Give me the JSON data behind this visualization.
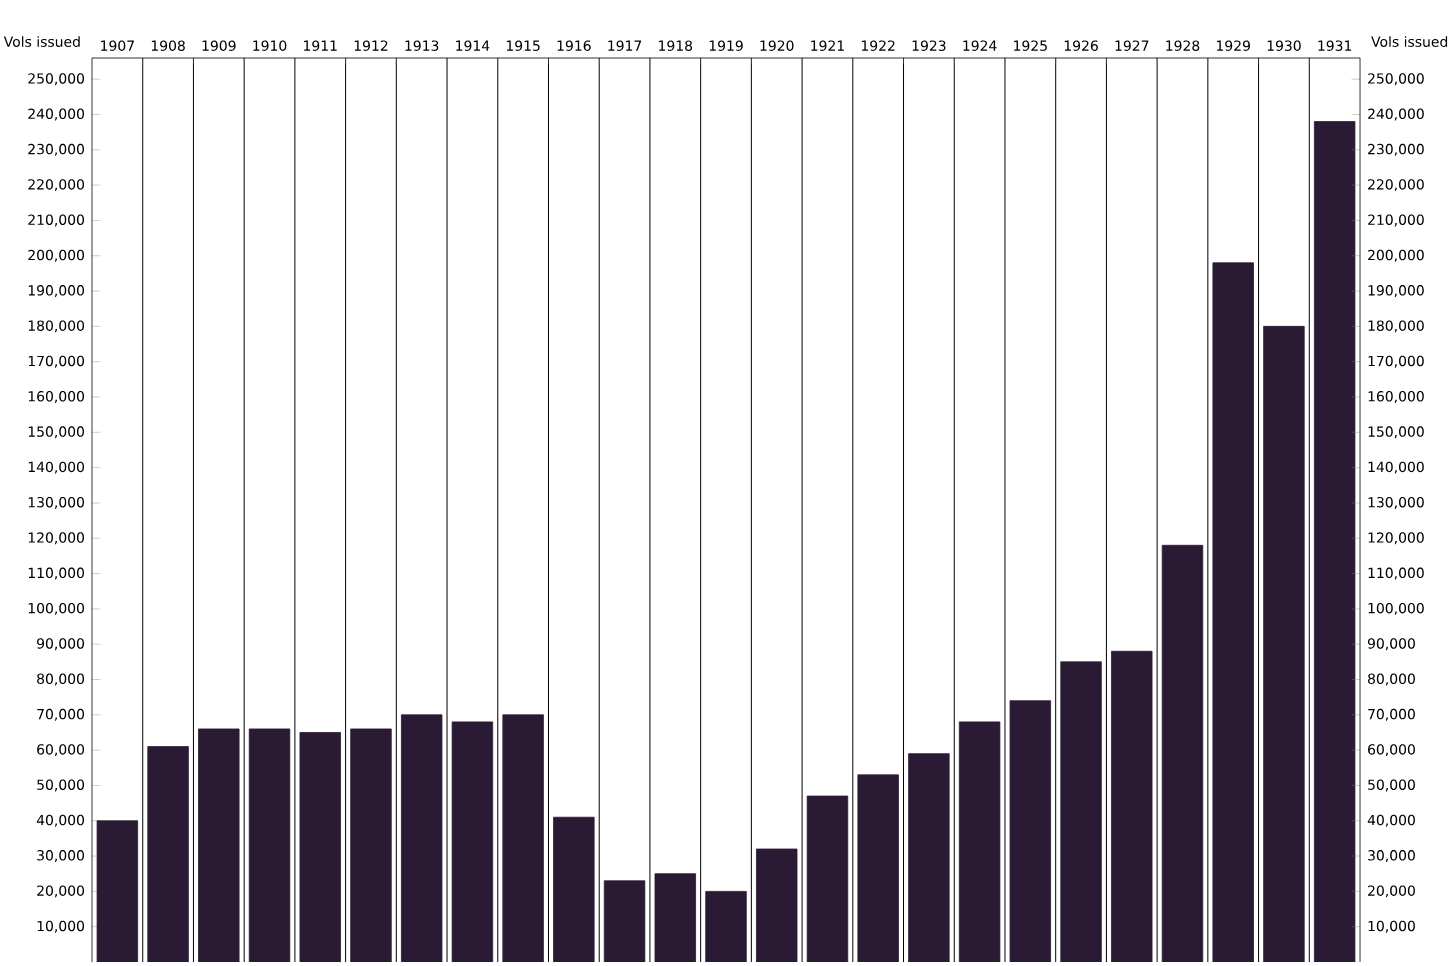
{
  "chart_data": {
    "type": "bar",
    "ylabel": "Vols issued",
    "y2label": "Vols issued",
    "categories": [
      "1907",
      "1908",
      "1909",
      "1910",
      "1911",
      "1912",
      "1913",
      "1914",
      "1915",
      "1916",
      "1917",
      "1918",
      "1919",
      "1920",
      "1921",
      "1922",
      "1923",
      "1924",
      "1925",
      "1926",
      "1927",
      "1928",
      "1929",
      "1930",
      "1931"
    ],
    "values": [
      40000,
      61000,
      66000,
      66000,
      65000,
      66000,
      70000,
      68000,
      70000,
      41000,
      23000,
      25000,
      20000,
      32000,
      47000,
      53000,
      59000,
      68000,
      74000,
      85000,
      88000,
      118000,
      198000,
      180000,
      238000
    ],
    "color": "#2b1a33",
    "ylim": [
      0,
      256000
    ],
    "yticks": [
      {
        "value": 10000,
        "label": "10,000"
      },
      {
        "value": 20000,
        "label": "20,000"
      },
      {
        "value": 30000,
        "label": "30,000"
      },
      {
        "value": 40000,
        "label": "40,000"
      },
      {
        "value": 50000,
        "label": "50,000"
      },
      {
        "value": 60000,
        "label": "60,000"
      },
      {
        "value": 70000,
        "label": "70,000"
      },
      {
        "value": 80000,
        "label": "80,000"
      },
      {
        "value": 90000,
        "label": "90,000"
      },
      {
        "value": 100000,
        "label": "100,000"
      },
      {
        "value": 110000,
        "label": "110,000"
      },
      {
        "value": 120000,
        "label": "120,000"
      },
      {
        "value": 130000,
        "label": "130,000"
      },
      {
        "value": 140000,
        "label": "140,000"
      },
      {
        "value": 150000,
        "label": "150,000"
      },
      {
        "value": 160000,
        "label": "160,000"
      },
      {
        "value": 170000,
        "label": "170,000"
      },
      {
        "value": 180000,
        "label": "180,000"
      },
      {
        "value": 190000,
        "label": "190,000"
      },
      {
        "value": 200000,
        "label": "200,000"
      },
      {
        "value": 210000,
        "label": "210,000"
      },
      {
        "value": 220000,
        "label": "220,000"
      },
      {
        "value": 230000,
        "label": "230,000"
      },
      {
        "value": 240000,
        "label": "240,000"
      },
      {
        "value": 250000,
        "label": "250,000"
      }
    ],
    "y2lim": [
      0,
      256000
    ],
    "y2ticks": [
      {
        "value": 10000,
        "label": "10,000"
      },
      {
        "value": 20000,
        "label": "20,000"
      },
      {
        "value": 30000,
        "label": "30,000"
      },
      {
        "value": 40000,
        "label": "40,000"
      },
      {
        "value": 50000,
        "label": "50,000"
      },
      {
        "value": 60000,
        "label": "60,000"
      },
      {
        "value": 70000,
        "label": "70,000"
      },
      {
        "value": 80000,
        "label": "80,000"
      },
      {
        "value": 90000,
        "label": "90,000"
      },
      {
        "value": 100000,
        "label": "100,000"
      },
      {
        "value": 110000,
        "label": "110,000"
      },
      {
        "value": 120000,
        "label": "120,000"
      },
      {
        "value": 130000,
        "label": "130,000"
      },
      {
        "value": 140000,
        "label": "140,000"
      },
      {
        "value": 150000,
        "label": "150,000"
      },
      {
        "value": 160000,
        "label": "160,000"
      },
      {
        "value": 170000,
        "label": "170,000"
      },
      {
        "value": 180000,
        "label": "180,000"
      },
      {
        "value": 190000,
        "label": "190,000"
      },
      {
        "value": 200000,
        "label": "200,000"
      },
      {
        "value": 210000,
        "label": "210,000"
      },
      {
        "value": 220000,
        "label": "220,000"
      },
      {
        "value": 230000,
        "label": "230,000"
      },
      {
        "value": 240000,
        "label": "240,000"
      },
      {
        "value": 250000,
        "label": "250,000"
      }
    ],
    "grid": "x"
  }
}
